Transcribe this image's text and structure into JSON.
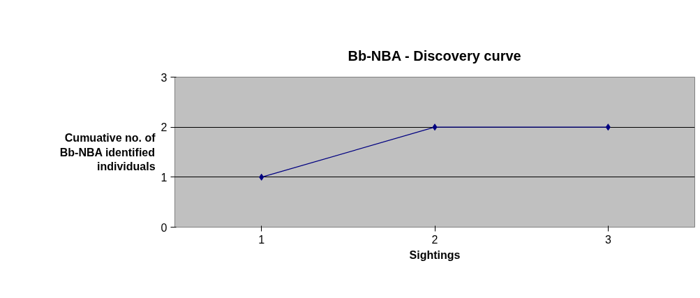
{
  "chart_data": {
    "type": "line",
    "title": "Bb-NBA - Discovery curve",
    "xlabel": "Sightings",
    "ylabel": "Cumuative no. of Bb-NBA identified individuals",
    "categories": [
      "1",
      "2",
      "3"
    ],
    "series": [
      {
        "color": "#000080",
        "values": [
          1,
          2,
          2
        ]
      }
    ],
    "ylim": [
      0,
      3
    ],
    "yticks": [
      0,
      1,
      2,
      3
    ],
    "grid": "y",
    "marker": "diamond",
    "line_style": "solid"
  }
}
